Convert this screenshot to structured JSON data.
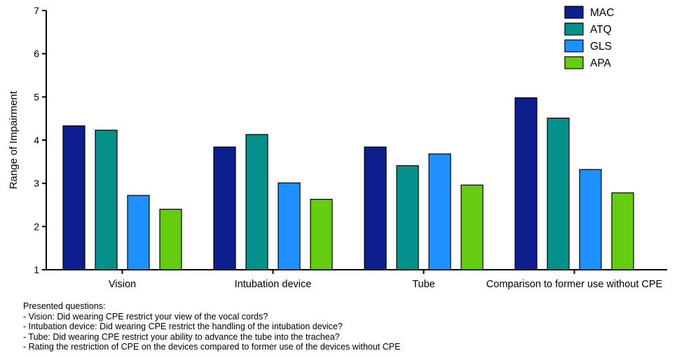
{
  "chart_data": {
    "type": "bar",
    "title": "",
    "xlabel": "",
    "ylabel": "Range of Impairment",
    "ylim": [
      1,
      7
    ],
    "yticks": [
      "1",
      "2",
      "3",
      "4",
      "5",
      "6",
      "7"
    ],
    "categories": [
      "Vision",
      "Intubation device",
      "Tube",
      "Comparison to former use without CPE"
    ],
    "series": [
      {
        "name": "MAC",
        "color": "#0c1f8c",
        "values": [
          4.33,
          3.84,
          3.84,
          4.98
        ]
      },
      {
        "name": "ATQ",
        "color": "#05908c",
        "values": [
          4.23,
          4.13,
          3.41,
          4.51
        ]
      },
      {
        "name": "GLS",
        "color": "#1e90ff",
        "values": [
          2.72,
          3.01,
          3.68,
          3.32
        ]
      },
      {
        "name": "APA",
        "color": "#66cc11",
        "values": [
          2.4,
          2.63,
          2.96,
          2.78
        ]
      }
    ],
    "legend_position": "top-right",
    "grid": false
  },
  "notes": {
    "heading": "Presented questions:",
    "items": [
      "- Vision: Did wearing CPE restrict your view of the vocal cords?",
      "- Intubation device: Did wearing CPE restrict the handling of  the intubation device?",
      "- Tube: Did wearing CPE restrict your ability to advance the tube into the trachea?",
      "- Rating the restriction of CPE on the devices compared to former use of the devices without CPE"
    ]
  }
}
